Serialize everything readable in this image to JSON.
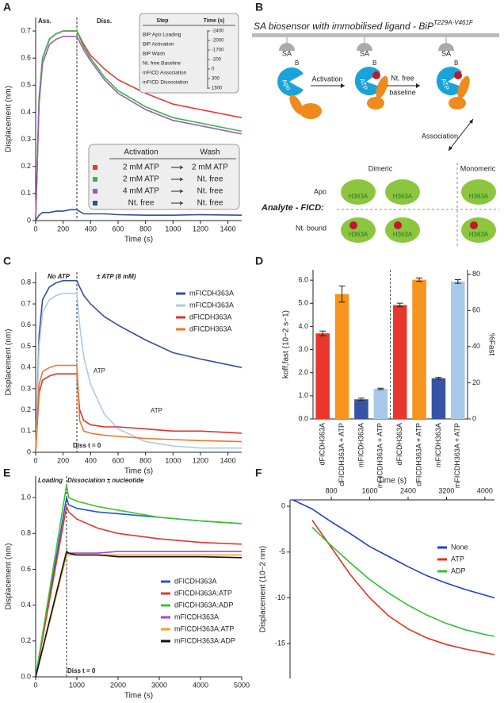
{
  "panel_labels": [
    "A",
    "B",
    "C",
    "D",
    "E",
    "F"
  ],
  "diagram": {
    "title": "SA biosensor with immobilised ligand - BiP",
    "title_sup": "T229A-V461F",
    "sa_labels": [
      "SA",
      "SA",
      "SA"
    ],
    "b_labels": [
      "B",
      "B",
      "B"
    ],
    "state_labels": [
      "Apo",
      "ATP",
      "ATP"
    ],
    "steps": [
      "Activation",
      "Nt. free",
      "baseline",
      "Association"
    ],
    "columns": [
      "Dimeric",
      "Monomeric"
    ],
    "rows": [
      "Apo",
      "Nt. bound"
    ],
    "analyte": "Analyte - FICD:",
    "blob_labels": [
      "H363A",
      "H363A",
      "H363A",
      "H363A",
      "H363A",
      "H363A"
    ]
  },
  "chart_data": [
    {
      "type": "line",
      "xlabel": "Time (s)",
      "ylabel": "Displacement (nm)",
      "x": [
        0,
        25,
        50,
        100,
        150,
        200,
        250,
        300,
        350,
        400,
        500,
        600,
        800,
        1000,
        1200,
        1500
      ],
      "xlim": [
        0,
        1500
      ],
      "xticks": [
        0,
        200,
        400,
        600,
        800,
        1000,
        1200,
        1400
      ],
      "ylim": [
        0,
        0.75
      ],
      "yticks": [
        0,
        0.1,
        0.2,
        0.3,
        0.4,
        0.5,
        0.6,
        0.7
      ],
      "vline": 300,
      "annotations": [
        "Ass.",
        "Diss."
      ],
      "legend_headers": [
        "Activation",
        "Wash"
      ],
      "series": [
        {
          "name": "2 mM ATP",
          "wash": "2 mM ATP",
          "color": "#e53a2f",
          "values": [
            0,
            0.45,
            0.6,
            0.67,
            0.69,
            0.7,
            0.7,
            0.7,
            0.65,
            0.61,
            0.56,
            0.52,
            0.47,
            0.43,
            0.41,
            0.38
          ]
        },
        {
          "name": "2 mM ATP",
          "wash": "Nt. free",
          "color": "#3ab54a",
          "values": [
            0,
            0.45,
            0.6,
            0.67,
            0.69,
            0.7,
            0.7,
            0.7,
            0.64,
            0.6,
            0.53,
            0.48,
            0.42,
            0.38,
            0.36,
            0.33
          ]
        },
        {
          "name": "4 mM ATP",
          "wash": "Nt. free",
          "color": "#9a5fb0",
          "values": [
            0,
            0.43,
            0.58,
            0.65,
            0.67,
            0.68,
            0.68,
            0.68,
            0.63,
            0.59,
            0.52,
            0.47,
            0.41,
            0.37,
            0.35,
            0.32
          ]
        },
        {
          "name": "Nt. free",
          "wash": "Nt. free",
          "color": "#2e4fa0",
          "values": [
            0,
            0.02,
            0.03,
            0.03,
            0.035,
            0.035,
            0.04,
            0.04,
            0.025,
            0.025,
            0.025,
            0.022,
            0.02,
            0.02,
            0.022,
            0.02
          ]
        }
      ],
      "inset_table": {
        "headers": [
          "Step",
          "Time (s)"
        ],
        "steps": [
          "BiP:Apo Loading",
          "BiP Activation",
          "BiP Wash",
          "Nt. free Baseline",
          "mFICD Association",
          "mFICD Dissociation"
        ],
        "times": [
          -2400,
          -2000,
          -1700,
          -200,
          0,
          300,
          1500
        ]
      }
    },
    {
      "type": "line",
      "xlabel": "Time (s)",
      "ylabel": "Displacement (nm)",
      "x": [
        0,
        25,
        50,
        100,
        150,
        200,
        250,
        300,
        320,
        350,
        400,
        500,
        600,
        800,
        1000,
        1200,
        1500
      ],
      "xlim": [
        0,
        1500
      ],
      "xticks": [
        0,
        200,
        400,
        600,
        800,
        1000,
        1200,
        1400
      ],
      "ylim": [
        0,
        0.85
      ],
      "yticks": [
        0,
        0.1,
        0.2,
        0.3,
        0.4,
        0.5,
        0.6,
        0.7,
        0.8
      ],
      "vline": 300,
      "annotations": [
        "No ATP",
        "± ATP (8 mM)",
        "ATP",
        "ATP",
        "Diss t = 0"
      ],
      "series": [
        {
          "name": "mFICDH363A",
          "color": "#34509a",
          "values": [
            0,
            0.55,
            0.72,
            0.78,
            0.8,
            0.81,
            0.81,
            0.81,
            0.78,
            0.74,
            0.7,
            0.64,
            0.6,
            0.53,
            0.47,
            0.44,
            0.4
          ]
        },
        {
          "name": "mFICDH363A",
          "color": "#a9cbe8",
          "values": [
            0,
            0.5,
            0.66,
            0.72,
            0.74,
            0.75,
            0.75,
            0.75,
            0.6,
            0.45,
            0.32,
            0.18,
            0.11,
            0.05,
            0.03,
            0.02,
            0.02
          ]
        },
        {
          "name": "dFICDH363A",
          "color": "#e0302a",
          "values": [
            0,
            0.28,
            0.34,
            0.36,
            0.37,
            0.37,
            0.37,
            0.37,
            0.2,
            0.15,
            0.13,
            0.12,
            0.12,
            0.11,
            0.1,
            0.1,
            0.09
          ]
        },
        {
          "name": "dFICDH363A",
          "color": "#f0752b",
          "values": [
            0,
            0.32,
            0.38,
            0.4,
            0.41,
            0.41,
            0.41,
            0.41,
            0.15,
            0.1,
            0.09,
            0.08,
            0.075,
            0.065,
            0.06,
            0.055,
            0.05
          ]
        }
      ]
    },
    {
      "type": "bar",
      "ylabel": "koff,fast (10−2 s−1)",
      "y2label": "%Fast",
      "categories": [
        "dFICDH363A",
        "dFICDH363A + ATP",
        "mFICDH363A",
        "mFICDH363A + ATP",
        "dFICDH363A",
        "dFICDH363A + ATP",
        "mFICDH363A",
        "mFICDH363A + ATP"
      ],
      "colors": [
        "#e8372c",
        "#f7941d",
        "#3454a4",
        "#a7c8e8",
        "#e8372c",
        "#f7941d",
        "#3454a4",
        "#a7c8e8"
      ],
      "ylim": [
        0,
        6.45
      ],
      "yticks": [
        {
          "value": 0,
          "label": "0.0"
        },
        {
          "value": 1,
          "label": "1.0"
        },
        {
          "value": 2,
          "label": "2.0"
        },
        {
          "value": 3,
          "label": "3.0"
        },
        {
          "value": 4,
          "label": "4.0"
        },
        {
          "value": 5,
          "label": "5.0"
        },
        {
          "value": 6,
          "label": "6.0"
        }
      ],
      "y2lim": [
        0,
        82.5
      ],
      "y2ticks": [
        0,
        20,
        40,
        60,
        80
      ],
      "series": [
        {
          "axis": "y",
          "values": [
            3.7,
            5.4,
            0.85,
            1.3,
            null,
            null,
            null,
            null
          ],
          "errors": [
            0.1,
            0.35,
            0.05,
            0.03,
            null,
            null,
            null,
            null
          ]
        },
        {
          "axis": "y2",
          "values": [
            null,
            null,
            null,
            null,
            63,
            77,
            22.5,
            76
          ],
          "errors": [
            null,
            null,
            null,
            null,
            1,
            1,
            0.5,
            1
          ]
        }
      ]
    },
    {
      "type": "line",
      "xlabel": "Time (s)",
      "ylabel": "Displacement (nm)",
      "x": [
        0,
        750,
        800,
        1000,
        1500,
        2000,
        3000,
        4000,
        5000
      ],
      "xlim": [
        0,
        5000
      ],
      "xticks": [
        0,
        1000,
        2000,
        3000,
        4000,
        5000
      ],
      "ylim": [
        0,
        1.12
      ],
      "yticks": [
        {
          "value": 0,
          "label": "0.0"
        },
        0.2,
        0.4,
        0.6,
        0.8,
        {
          "value": 1,
          "label": "1.0"
        }
      ],
      "vline": 750,
      "annotations": [
        "Loading",
        "Dissociation ± nucleotide",
        "Diss t = 0"
      ],
      "series": [
        {
          "name": "dFICDH363A",
          "color": "#2255d6",
          "values": [
            0,
            1.0,
            0.96,
            0.94,
            0.92,
            0.91,
            0.89,
            0.87,
            0.855
          ]
        },
        {
          "name": "dFICDH363A:ATP",
          "color": "#e8352a",
          "values": [
            0,
            0.95,
            0.92,
            0.88,
            0.83,
            0.8,
            0.77,
            0.75,
            0.74
          ]
        },
        {
          "name": "dFICDH363A:ADP",
          "color": "#3cc42c",
          "values": [
            0,
            1.07,
            1.0,
            0.98,
            0.95,
            0.93,
            0.89,
            0.87,
            0.855
          ]
        },
        {
          "name": "mFICDH363A",
          "color": "#b040d0",
          "values": [
            0,
            0.69,
            0.69,
            0.69,
            0.69,
            0.7,
            0.7,
            0.7,
            0.7
          ]
        },
        {
          "name": "mFICDH363A:ATP",
          "color": "#f5a020",
          "values": [
            0,
            0.68,
            0.68,
            0.68,
            0.68,
            0.68,
            0.68,
            0.68,
            0.68
          ]
        },
        {
          "name": "mFICDH363A:ADP",
          "color": "#111111",
          "values": [
            0,
            0.7,
            0.69,
            0.68,
            0.68,
            0.67,
            0.67,
            0.67,
            0.665
          ]
        }
      ]
    },
    {
      "type": "line",
      "xlabel": "Time (s)",
      "ylabel": "Displacement (10−2 nm)",
      "xaxis": "top",
      "x": [
        0,
        400,
        800,
        1200,
        1600,
        2000,
        2400,
        2800,
        3200,
        3600,
        4000,
        4200
      ],
      "xlim": [
        -60,
        4200
      ],
      "xticks": [
        800,
        1600,
        2400,
        3200,
        4000
      ],
      "ylim": [
        -18.8,
        0.7
      ],
      "yticks": [
        0,
        -5,
        -10,
        -15
      ],
      "series": [
        {
          "name": "None",
          "color": "#1f3fd0",
          "values": [
            0.7,
            -0.3,
            -1.7,
            -3.0,
            -4.4,
            -5.5,
            -6.6,
            -7.6,
            -8.4,
            -9.1,
            -9.7,
            -10.0
          ]
        },
        {
          "name": "ATP",
          "color": "#e8301e",
          "values": [
            null,
            -1.5,
            -4.5,
            -7.5,
            -10,
            -12,
            -13.4,
            -14.4,
            -15.1,
            -15.6,
            -16,
            -16.2
          ]
        },
        {
          "name": "ADP",
          "color": "#30c030",
          "values": [
            null,
            -2.3,
            -4.3,
            -6.2,
            -8,
            -9.5,
            -10.8,
            -11.9,
            -12.8,
            -13.5,
            -14.0,
            -14.2
          ]
        }
      ]
    }
  ]
}
